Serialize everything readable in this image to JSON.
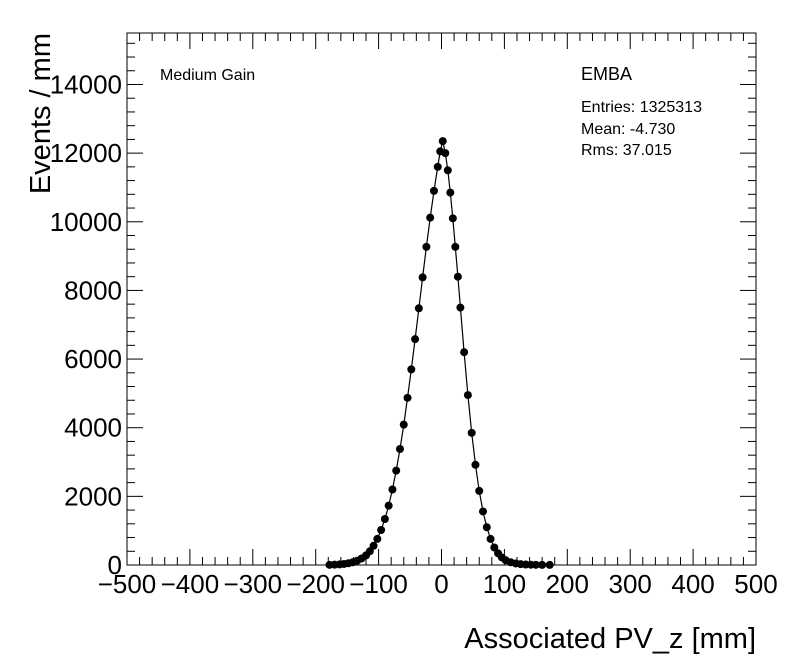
{
  "chart_data": {
    "type": "scatter",
    "title": "",
    "xlabel": "Associated PV_z [mm]",
    "ylabel": "Events / mm",
    "xlim": [
      -500,
      500
    ],
    "ylim": [
      0,
      15500
    ],
    "x_ticks": [
      -500,
      -400,
      -300,
      -200,
      -100,
      0,
      100,
      200,
      300,
      400,
      500
    ],
    "x_tick_labels": [
      "−500",
      "−400",
      "−300",
      "−200",
      "−100",
      "0",
      "100",
      "200",
      "300",
      "400",
      "500"
    ],
    "y_ticks": [
      0,
      2000,
      4000,
      6000,
      8000,
      10000,
      12000,
      14000
    ],
    "y_tick_labels": [
      "0",
      "2000",
      "4000",
      "6000",
      "8000",
      "10000",
      "12000",
      "14000"
    ],
    "grid": false,
    "annotations": {
      "gain": "Medium Gain",
      "partition": "EMBA",
      "entries": "Entries: 1325313",
      "mean": "Mean: -4.730",
      "rms": "Rms: 37.015"
    },
    "series": [
      {
        "marker": "filled-circle",
        "color": "#000000",
        "points": [
          [
            -178,
            5
          ],
          [
            -170,
            10
          ],
          [
            -162,
            18
          ],
          [
            -155,
            30
          ],
          [
            -148,
            50
          ],
          [
            -141,
            80
          ],
          [
            -134,
            125
          ],
          [
            -127,
            190
          ],
          [
            -120,
            280
          ],
          [
            -114,
            400
          ],
          [
            -108,
            560
          ],
          [
            -102,
            760
          ],
          [
            -96,
            1020
          ],
          [
            -90,
            1340
          ],
          [
            -84,
            1730
          ],
          [
            -78,
            2200
          ],
          [
            -72,
            2750
          ],
          [
            -66,
            3380
          ],
          [
            -60,
            4090
          ],
          [
            -54,
            4870
          ],
          [
            -48,
            5700
          ],
          [
            -42,
            6580
          ],
          [
            -36,
            7480
          ],
          [
            -30,
            8380
          ],
          [
            -24,
            9270
          ],
          [
            -18,
            10120
          ],
          [
            -12,
            10900
          ],
          [
            -6,
            11600
          ],
          [
            -2,
            12050
          ],
          [
            2,
            12350
          ],
          [
            6,
            12000
          ],
          [
            10,
            11500
          ],
          [
            14,
            10850
          ],
          [
            18,
            10100
          ],
          [
            22,
            9270
          ],
          [
            26,
            8400
          ],
          [
            30,
            7500
          ],
          [
            36,
            6200
          ],
          [
            42,
            4950
          ],
          [
            48,
            3850
          ],
          [
            54,
            2920
          ],
          [
            60,
            2160
          ],
          [
            66,
            1560
          ],
          [
            72,
            1100
          ],
          [
            78,
            760
          ],
          [
            84,
            510
          ],
          [
            90,
            340
          ],
          [
            96,
            220
          ],
          [
            102,
            140
          ],
          [
            110,
            80
          ],
          [
            118,
            45
          ],
          [
            126,
            25
          ],
          [
            134,
            14
          ],
          [
            142,
            8
          ],
          [
            150,
            5
          ],
          [
            160,
            3
          ],
          [
            172,
            2
          ]
        ]
      }
    ]
  }
}
